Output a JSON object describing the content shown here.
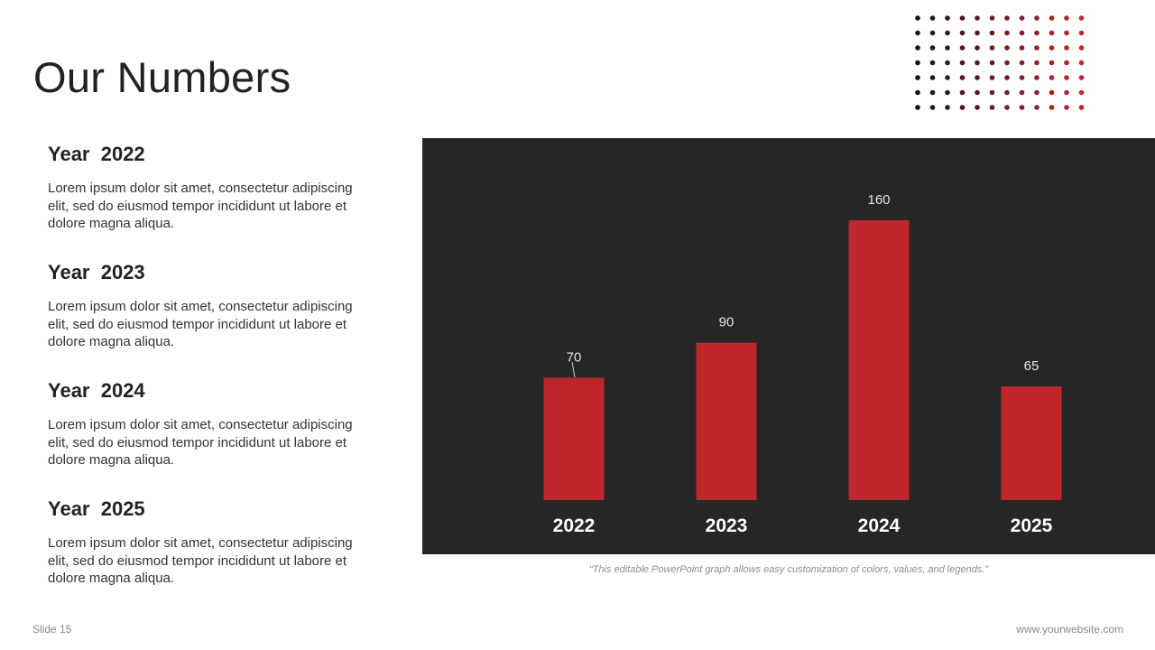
{
  "title": "Our Numbers",
  "entries": [
    {
      "title": "Year  2022",
      "body": "Lorem ipsum dolor sit amet, consectetur adipiscing elit, sed do eiusmod tempor incididunt ut labore et dolore magna aliqua."
    },
    {
      "title": "Year  2023",
      "body": "Lorem ipsum dolor sit amet, consectetur adipiscing elit, sed do eiusmod tempor incididunt ut labore et dolore magna aliqua."
    },
    {
      "title": "Year  2024",
      "body": "Lorem ipsum dolor sit amet, consectetur adipiscing elit, sed do eiusmod tempor incididunt ut labore et dolore magna aliqua."
    },
    {
      "title": "Year  2025",
      "body": "Lorem ipsum dolor sit amet, consectetur adipiscing elit, sed do eiusmod tempor incididunt ut labore et dolore magna aliqua."
    }
  ],
  "chart_data": {
    "type": "bar",
    "categories": [
      "2022",
      "2023",
      "2024",
      "2025"
    ],
    "values": [
      70,
      90,
      160,
      65
    ],
    "title": "",
    "xlabel": "",
    "ylabel": "",
    "ylim": [
      0,
      160
    ],
    "grid": false,
    "legend": "none",
    "bar_color": "#c0272d",
    "background": "#262626"
  },
  "caption": "“This editable PowerPoint graph allows easy customization of colors, values, and legends.”",
  "footer": {
    "slide_label": "Slide 15",
    "website": "www.yourwebsite.com"
  },
  "colors": {
    "accent": "#c0272d",
    "dark_panel": "#262626",
    "text": "#222222"
  }
}
